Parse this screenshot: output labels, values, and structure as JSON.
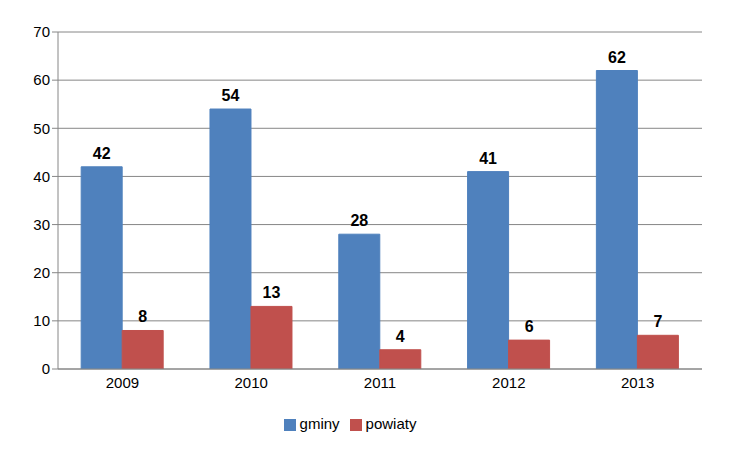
{
  "chart_data": {
    "type": "bar",
    "categories": [
      "2009",
      "2010",
      "2011",
      "2012",
      "2013"
    ],
    "series": [
      {
        "name": "gminy",
        "color": "#4f81bd",
        "values": [
          42,
          54,
          28,
          41,
          62
        ]
      },
      {
        "name": "powiaty",
        "color": "#c0504d",
        "values": [
          8,
          13,
          4,
          6,
          7
        ]
      }
    ],
    "ylim": [
      0,
      70
    ],
    "yticks": [
      0,
      10,
      20,
      30,
      40,
      50,
      60,
      70
    ],
    "grid": true,
    "data_labels": true,
    "legend": "bottom"
  }
}
